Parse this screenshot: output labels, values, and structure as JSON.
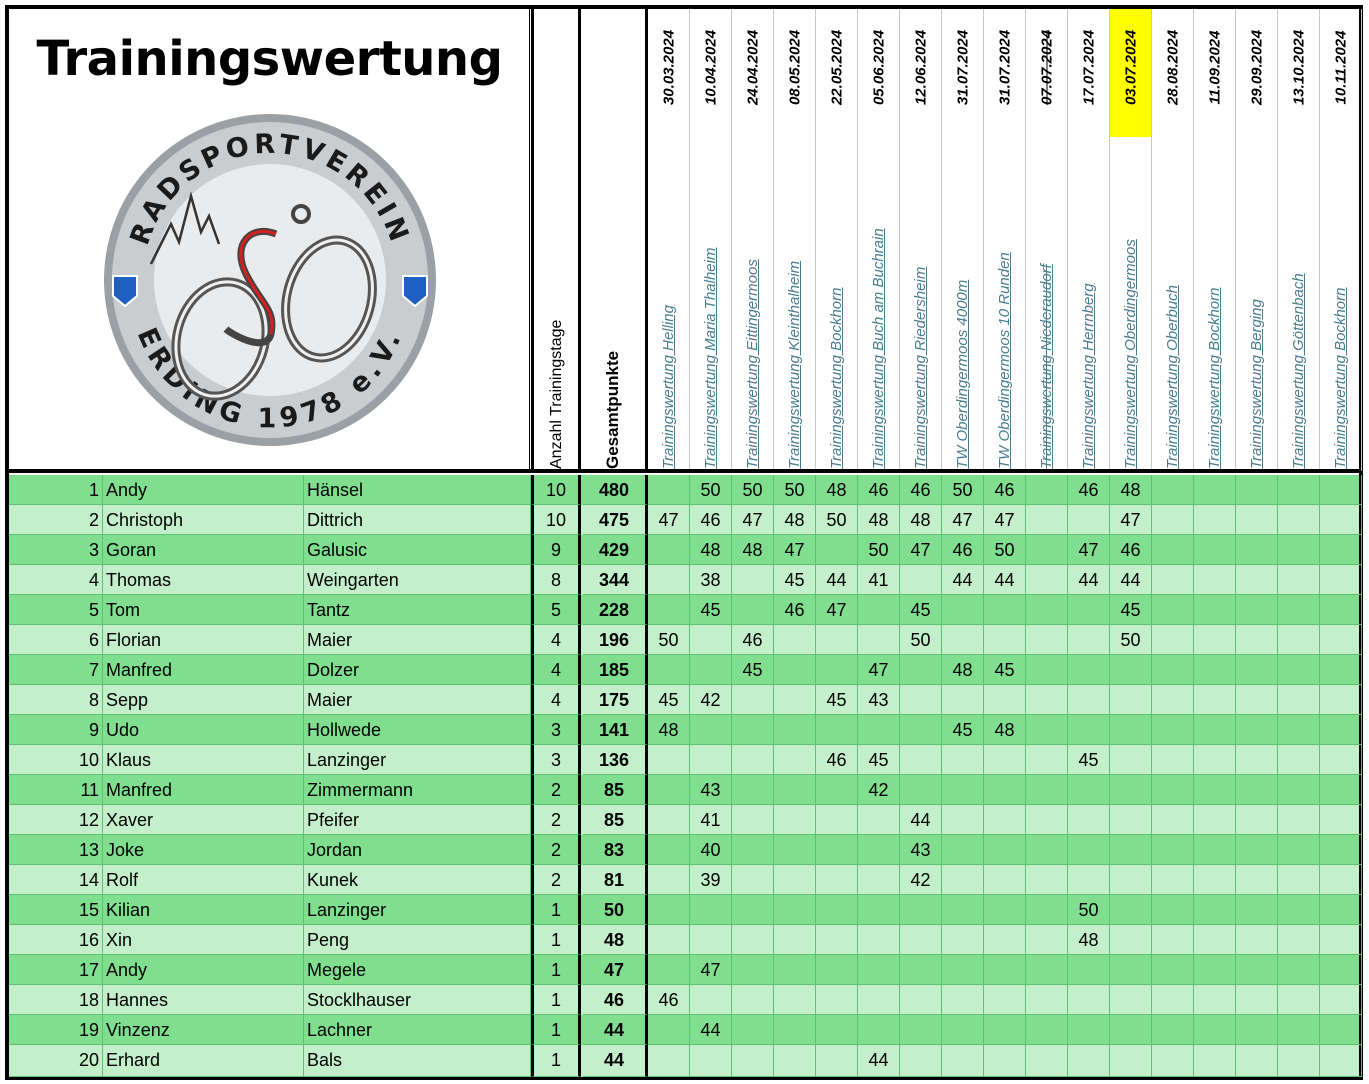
{
  "title": "Trainingswertung",
  "logo": {
    "top_text": "RADSPORTVEREIN",
    "bottom_text": "ERDING 1978 e.V."
  },
  "columns": {
    "days_label": "Anzahl Trainingstage",
    "total_label": "Gesamtpunkte"
  },
  "events": [
    {
      "date": "30.03.2024",
      "name": "Trainingswertung Helling"
    },
    {
      "date": "10.04.2024",
      "name": "Trainingswertung Maria Thalheim"
    },
    {
      "date": "24.04.2024",
      "name": "Trainingswertung Eittingermoos"
    },
    {
      "date": "08.05.2024",
      "name": "Trainingswertung Kleinthalheim"
    },
    {
      "date": "22.05.2024",
      "name": "Trainingswertung Bockhorn"
    },
    {
      "date": "05.06.2024",
      "name": "Trainingswertung Buch am Buchrain"
    },
    {
      "date": "12.06.2024",
      "name": "Trainingswertung Riedersheim"
    },
    {
      "date": "31.07.2024",
      "name": "TW Oberdingermoos 4000m"
    },
    {
      "date": "31.07.2024",
      "name": "TW Oberdingermoos 10 Runden"
    },
    {
      "date": "07.07.2024",
      "name": "Trainingswertung Niederaudorf",
      "cancelled": true
    },
    {
      "date": "17.07.2024",
      "name": "Trainingswertung Herrnberg"
    },
    {
      "date": "03.07.2024",
      "name": "Trainingswertung Oberdingermoos",
      "highlight": "#ffff00"
    },
    {
      "date": "28.08.2024",
      "name": "Trainingswertung Oberbuch"
    },
    {
      "date": "11.09.2024",
      "name": "Trainingswertung Bockhorn"
    },
    {
      "date": "29.09.2024",
      "name": "Trainingswertung Berging"
    },
    {
      "date": "13.10.2024",
      "name": "Trainingswertung Göttenbach"
    },
    {
      "date": "10.11.2024",
      "name": "Trainingswertung Bockhorn"
    }
  ],
  "rows": [
    {
      "rank": "1",
      "first": "Andy",
      "last": "Hänsel",
      "days": "10",
      "total": "480",
      "scores": [
        "",
        "50",
        "50",
        "50",
        "48",
        "46",
        "46",
        "50",
        "46",
        "",
        "46",
        "48",
        "",
        "",
        "",
        "",
        ""
      ]
    },
    {
      "rank": "2",
      "first": "Christoph",
      "last": "Dittrich",
      "days": "10",
      "total": "475",
      "scores": [
        "47",
        "46",
        "47",
        "48",
        "50",
        "48",
        "48",
        "47",
        "47",
        "",
        "",
        "47",
        "",
        "",
        "",
        "",
        ""
      ]
    },
    {
      "rank": "3",
      "first": "Goran",
      "last": "Galusic",
      "days": "9",
      "total": "429",
      "scores": [
        "",
        "48",
        "48",
        "47",
        "",
        "50",
        "47",
        "46",
        "50",
        "",
        "47",
        "46",
        "",
        "",
        "",
        "",
        ""
      ]
    },
    {
      "rank": "4",
      "first": "Thomas",
      "last": "Weingarten",
      "days": "8",
      "total": "344",
      "scores": [
        "",
        "38",
        "",
        "45",
        "44",
        "41",
        "",
        "44",
        "44",
        "",
        "44",
        "44",
        "",
        "",
        "",
        "",
        ""
      ]
    },
    {
      "rank": "5",
      "first": "Tom",
      "last": "Tantz",
      "days": "5",
      "total": "228",
      "scores": [
        "",
        "45",
        "",
        "46",
        "47",
        "",
        "45",
        "",
        "",
        "",
        "",
        "45",
        "",
        "",
        "",
        "",
        ""
      ]
    },
    {
      "rank": "6",
      "first": "Florian",
      "last": "Maier",
      "days": "4",
      "total": "196",
      "scores": [
        "50",
        "",
        "46",
        "",
        "",
        "",
        "50",
        "",
        "",
        "",
        "",
        "50",
        "",
        "",
        "",
        "",
        ""
      ]
    },
    {
      "rank": "7",
      "first": "Manfred",
      "last": "Dolzer",
      "days": "4",
      "total": "185",
      "scores": [
        "",
        "",
        "45",
        "",
        "",
        "47",
        "",
        "48",
        "45",
        "",
        "",
        "",
        "",
        "",
        "",
        "",
        ""
      ]
    },
    {
      "rank": "8",
      "first": "Sepp",
      "last": "Maier",
      "days": "4",
      "total": "175",
      "scores": [
        "45",
        "42",
        "",
        "",
        "45",
        "43",
        "",
        "",
        "",
        "",
        "",
        "",
        "",
        "",
        "",
        "",
        ""
      ]
    },
    {
      "rank": "9",
      "first": "Udo",
      "last": "Hollwede",
      "days": "3",
      "total": "141",
      "scores": [
        "48",
        "",
        "",
        "",
        "",
        "",
        "",
        "45",
        "48",
        "",
        "",
        "",
        "",
        "",
        "",
        "",
        ""
      ]
    },
    {
      "rank": "10",
      "first": "Klaus",
      "last": "Lanzinger",
      "days": "3",
      "total": "136",
      "scores": [
        "",
        "",
        "",
        "",
        "46",
        "45",
        "",
        "",
        "",
        "",
        "45",
        "",
        "",
        "",
        "",
        "",
        ""
      ]
    },
    {
      "rank": "11",
      "first": "Manfred",
      "last": "Zimmermann",
      "days": "2",
      "total": "85",
      "scores": [
        "",
        "43",
        "",
        "",
        "",
        "42",
        "",
        "",
        "",
        "",
        "",
        "",
        "",
        "",
        "",
        "",
        ""
      ]
    },
    {
      "rank": "12",
      "first": "Xaver",
      "last": "Pfeifer",
      "days": "2",
      "total": "85",
      "scores": [
        "",
        "41",
        "",
        "",
        "",
        "",
        "44",
        "",
        "",
        "",
        "",
        "",
        "",
        "",
        "",
        "",
        ""
      ]
    },
    {
      "rank": "13",
      "first": "Joke",
      "last": "Jordan",
      "days": "2",
      "total": "83",
      "scores": [
        "",
        "40",
        "",
        "",
        "",
        "",
        "43",
        "",
        "",
        "",
        "",
        "",
        "",
        "",
        "",
        "",
        ""
      ]
    },
    {
      "rank": "14",
      "first": "Rolf",
      "last": "Kunek",
      "days": "2",
      "total": "81",
      "scores": [
        "",
        "39",
        "",
        "",
        "",
        "",
        "42",
        "",
        "",
        "",
        "",
        "",
        "",
        "",
        "",
        "",
        ""
      ]
    },
    {
      "rank": "15",
      "first": "Kilian",
      "last": "Lanzinger",
      "days": "1",
      "total": "50",
      "scores": [
        "",
        "",
        "",
        "",
        "",
        "",
        "",
        "",
        "",
        "",
        "50",
        "",
        "",
        "",
        "",
        "",
        ""
      ]
    },
    {
      "rank": "16",
      "first": "Xin",
      "last": "Peng",
      "days": "1",
      "total": "48",
      "scores": [
        "",
        "",
        "",
        "",
        "",
        "",
        "",
        "",
        "",
        "",
        "48",
        "",
        "",
        "",
        "",
        "",
        ""
      ]
    },
    {
      "rank": "17",
      "first": "Andy",
      "last": "Megele",
      "days": "1",
      "total": "47",
      "scores": [
        "",
        "47",
        "",
        "",
        "",
        "",
        "",
        "",
        "",
        "",
        "",
        "",
        "",
        "",
        "",
        "",
        ""
      ]
    },
    {
      "rank": "18",
      "first": "Hannes",
      "last": "Stocklhauser",
      "days": "1",
      "total": "46",
      "scores": [
        "46",
        "",
        "",
        "",
        "",
        "",
        "",
        "",
        "",
        "",
        "",
        "",
        "",
        "",
        "",
        "",
        ""
      ]
    },
    {
      "rank": "19",
      "first": "Vinzenz",
      "last": "Lachner",
      "days": "1",
      "total": "44",
      "scores": [
        "",
        "44",
        "",
        "",
        "",
        "",
        "",
        "",
        "",
        "",
        "",
        "",
        "",
        "",
        "",
        "",
        ""
      ]
    },
    {
      "rank": "20",
      "first": "Erhard",
      "last": "Bals",
      "days": "1",
      "total": "44",
      "scores": [
        "",
        "",
        "",
        "",
        "",
        "44",
        "",
        "",
        "",
        "",
        "",
        "",
        "",
        "",
        "",
        "",
        ""
      ]
    }
  ]
}
